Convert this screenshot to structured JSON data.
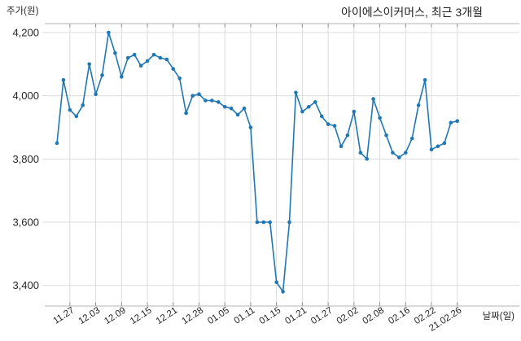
{
  "chart": {
    "title": "아이에스이커머스, 최근 3개월",
    "y_axis_title": "주가(원)",
    "x_axis_title": "날짜(일)"
  },
  "chart_data": {
    "type": "line",
    "title": "아이에스이커머스, 최근 3개월",
    "ylabel": "주가(원)",
    "xlabel": "날짜(일)",
    "series_name": "주가",
    "line_color": "#1f77b4",
    "marker_color": "#1f77b4",
    "grid": true,
    "gridline_color": "#dcdcdc",
    "spine_color": "#b3b3b3",
    "tick_color": "#8c8c8c",
    "y_ticks": [
      4200,
      4000,
      3800,
      3600,
      3400
    ],
    "y_tick_labels": [
      "4,200",
      "4,000",
      "3,800",
      "3,600",
      "3,400"
    ],
    "ylim": [
      3340,
      4230
    ],
    "x_tick_labels": [
      "11.27",
      "12.03",
      "12.09",
      "12.15",
      "12.21",
      "12.28",
      "01.05",
      "01.11",
      "01.15",
      "01.21",
      "01.27",
      "02.02",
      "02.08",
      "02.16",
      "02.22",
      "21.02.26"
    ],
    "x_tick_indices": [
      2,
      6,
      10,
      14,
      18,
      22,
      26,
      30,
      34,
      38,
      42,
      46,
      50,
      54,
      58,
      62
    ],
    "x": [
      "11.25",
      "11.26",
      "11.27",
      "11.30",
      "12.01",
      "12.02",
      "12.03",
      "12.04",
      "12.07",
      "12.08",
      "12.09",
      "12.10",
      "12.11",
      "12.14",
      "12.15",
      "12.16",
      "12.17",
      "12.18",
      "12.21",
      "12.22",
      "12.23",
      "12.24",
      "12.28",
      "12.29",
      "12.30",
      "01.04",
      "01.05",
      "01.06",
      "01.07",
      "01.08",
      "01.11",
      "01.12",
      "01.13",
      "01.14",
      "01.15",
      "01.18",
      "01.19",
      "01.20",
      "01.21",
      "01.22",
      "01.25",
      "01.26",
      "01.27",
      "01.28",
      "01.29",
      "02.01",
      "02.02",
      "02.03",
      "02.04",
      "02.05",
      "02.08",
      "02.09",
      "02.10",
      "02.15",
      "02.16",
      "02.17",
      "02.18",
      "02.19",
      "02.22",
      "02.23",
      "02.24",
      "02.25",
      "02.26"
    ],
    "values": [
      3850,
      4050,
      3955,
      3935,
      3970,
      4100,
      4005,
      4065,
      4200,
      4135,
      4060,
      4120,
      4130,
      4095,
      4110,
      4130,
      4120,
      4115,
      4085,
      4055,
      3945,
      4000,
      4005,
      3985,
      3985,
      3980,
      3965,
      3960,
      3940,
      3960,
      3900,
      3600,
      3600,
      3600,
      3410,
      3380,
      3600,
      4010,
      3950,
      3965,
      3980,
      3935,
      3910,
      3905,
      3840,
      3875,
      3950,
      3820,
      3800,
      3990,
      3930,
      3875,
      3820,
      3805,
      3820,
      3865,
      3970,
      4050,
      3830,
      3840,
      3850,
      3915,
      3920
    ]
  }
}
